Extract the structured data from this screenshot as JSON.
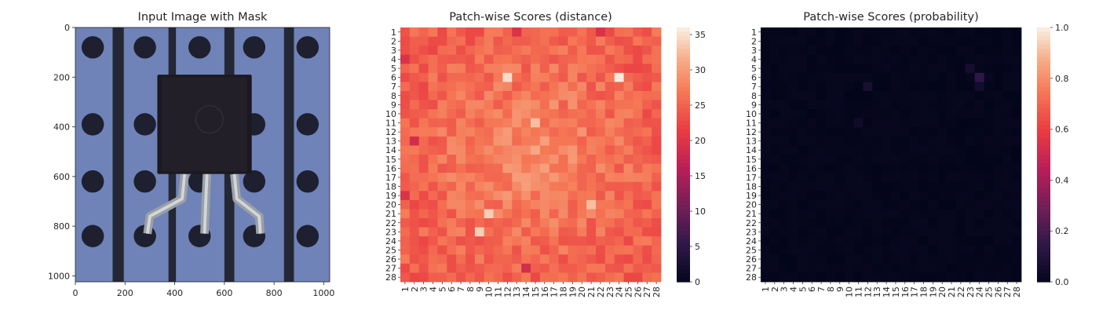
{
  "chart_data": [
    {
      "type": "image",
      "title": "Input Image with Mask",
      "xticks": [
        0,
        200,
        400,
        600,
        800,
        1000
      ],
      "yticks": [
        0,
        200,
        400,
        600,
        800,
        1000
      ],
      "xlim": [
        0,
        1024
      ],
      "ylim": [
        1024,
        0
      ],
      "image": {
        "background": "#6f83b8",
        "strips_x": [
          [
            150,
            195
          ],
          [
            375,
            405
          ],
          [
            600,
            640
          ],
          [
            840,
            880
          ]
        ],
        "holes": [
          [
            70,
            80
          ],
          [
            280,
            80
          ],
          [
            500,
            80
          ],
          [
            720,
            80
          ],
          [
            935,
            80
          ],
          [
            70,
            390
          ],
          [
            280,
            390
          ],
          [
            500,
            390
          ],
          [
            720,
            390
          ],
          [
            935,
            390
          ],
          [
            70,
            620
          ],
          [
            280,
            620
          ],
          [
            500,
            620
          ],
          [
            720,
            620
          ],
          [
            935,
            620
          ],
          [
            70,
            840
          ],
          [
            280,
            840
          ],
          [
            500,
            840
          ],
          [
            720,
            840
          ],
          [
            935,
            840
          ]
        ],
        "hole_radius": 45,
        "component_body": [
          330,
          190,
          710,
          590
        ],
        "component_color": "#1b1820"
      }
    },
    {
      "type": "heatmap",
      "title": "Patch-wise Scores (distance)",
      "rows": 28,
      "cols": 28,
      "row_labels": [
        "1",
        "2",
        "3",
        "4",
        "5",
        "6",
        "7",
        "8",
        "9",
        "10",
        "11",
        "12",
        "13",
        "14",
        "15",
        "16",
        "17",
        "18",
        "19",
        "20",
        "21",
        "22",
        "23",
        "24",
        "25",
        "26",
        "27",
        "28"
      ],
      "col_labels": [
        "1",
        "2",
        "3",
        "4",
        "5",
        "6",
        "7",
        "8",
        "9",
        "10",
        "11",
        "12",
        "13",
        "14",
        "15",
        "16",
        "17",
        "18",
        "19",
        "20",
        "21",
        "22",
        "23",
        "24",
        "25",
        "26",
        "27",
        "28"
      ],
      "vmin": 0,
      "vmax": 36,
      "colorbar_ticks": [
        0,
        5,
        10,
        15,
        20,
        25,
        30,
        35
      ],
      "colormap": "rocket",
      "value_summary": {
        "typical": 27,
        "range": [
          19,
          36
        ]
      },
      "hotspots": [
        {
          "row": 6,
          "col": 12,
          "value": 35
        },
        {
          "row": 6,
          "col": 24,
          "value": 36
        },
        {
          "row": 11,
          "col": 15,
          "value": 33
        },
        {
          "row": 21,
          "col": 10,
          "value": 34
        },
        {
          "row": 23,
          "col": 9,
          "value": 34
        },
        {
          "row": 20,
          "col": 21,
          "value": 33
        }
      ],
      "coldspots": [
        {
          "row": 13,
          "col": 2,
          "value": 19
        },
        {
          "row": 4,
          "col": 1,
          "value": 20
        },
        {
          "row": 19,
          "col": 1,
          "value": 20
        },
        {
          "row": 27,
          "col": 14,
          "value": 19
        },
        {
          "row": 1,
          "col": 13,
          "value": 20
        },
        {
          "row": 1,
          "col": 22,
          "value": 20
        }
      ]
    },
    {
      "type": "heatmap",
      "title": "Patch-wise Scores (probability)",
      "rows": 28,
      "cols": 28,
      "row_labels": [
        "1",
        "2",
        "3",
        "4",
        "5",
        "6",
        "7",
        "8",
        "9",
        "10",
        "11",
        "12",
        "13",
        "14",
        "15",
        "16",
        "17",
        "18",
        "19",
        "20",
        "21",
        "22",
        "23",
        "24",
        "25",
        "26",
        "27",
        "28"
      ],
      "col_labels": [
        "1",
        "2",
        "3",
        "4",
        "5",
        "6",
        "7",
        "8",
        "9",
        "10",
        "11",
        "12",
        "13",
        "14",
        "15",
        "16",
        "17",
        "18",
        "19",
        "20",
        "21",
        "22",
        "23",
        "24",
        "25",
        "26",
        "27",
        "28"
      ],
      "vmin": 0,
      "vmax": 1,
      "colorbar_ticks": [
        "0.0",
        "0.2",
        "0.4",
        "0.6",
        "0.8",
        "1.0"
      ],
      "colormap": "rocket",
      "value_summary": {
        "typical": 0.0,
        "range": [
          0.0,
          0.15
        ]
      },
      "hotspots": [
        {
          "row": 6,
          "col": 24,
          "value": 0.15
        },
        {
          "row": 5,
          "col": 23,
          "value": 0.07
        },
        {
          "row": 7,
          "col": 12,
          "value": 0.08
        },
        {
          "row": 7,
          "col": 24,
          "value": 0.06
        },
        {
          "row": 11,
          "col": 11,
          "value": 0.05
        }
      ]
    }
  ]
}
